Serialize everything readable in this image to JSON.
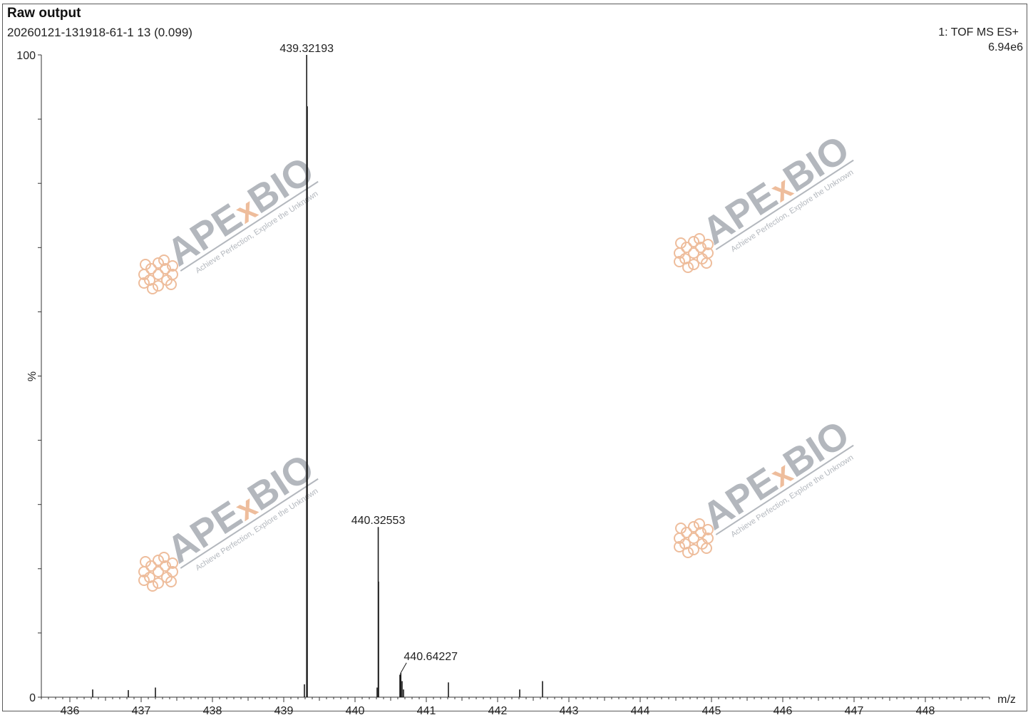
{
  "header": {
    "title": "Raw output",
    "sample": "20260121-131918-61-1 13 (0.099)",
    "mode": "1: TOF MS ES+",
    "intensity": "6.94e6"
  },
  "watermark": {
    "brand_left": "APE",
    "brand_x": "x",
    "brand_right": "BIO",
    "tagline": "Achieve Perfection, Explore the Unknown"
  },
  "colors": {
    "peak": "#1a1a1a",
    "axis": "#333333",
    "watermark_gray": "#9aa0a8",
    "watermark_orange": "#e9a77c"
  },
  "chart_data": {
    "type": "bar",
    "title": "Raw output",
    "xlabel": "m/z",
    "ylabel": "%",
    "xlim": [
      435.6,
      448.9
    ],
    "ylim": [
      0,
      100
    ],
    "x_ticks": [
      "436",
      "437",
      "438",
      "439",
      "440",
      "441",
      "442",
      "443",
      "444",
      "445",
      "446",
      "447",
      "448"
    ],
    "y_ticks": [
      "0",
      "100"
    ],
    "peaks": [
      {
        "mz": 436.32,
        "intensity": 1.2,
        "label": ""
      },
      {
        "mz": 436.82,
        "intensity": 1.1,
        "label": ""
      },
      {
        "mz": 437.2,
        "intensity": 1.5,
        "label": ""
      },
      {
        "mz": 439.29,
        "intensity": 2.0,
        "label": ""
      },
      {
        "mz": 439.32193,
        "intensity": 100,
        "label": "439.32193"
      },
      {
        "mz": 439.33,
        "intensity": 92,
        "label": ""
      },
      {
        "mz": 440.31,
        "intensity": 1.5,
        "label": ""
      },
      {
        "mz": 440.32553,
        "intensity": 26.5,
        "label": "440.32553"
      },
      {
        "mz": 440.33,
        "intensity": 18,
        "label": ""
      },
      {
        "mz": 440.63,
        "intensity": 3.5,
        "label": ""
      },
      {
        "mz": 440.64227,
        "intensity": 3.8,
        "label": "440.64227"
      },
      {
        "mz": 440.66,
        "intensity": 2.5,
        "label": ""
      },
      {
        "mz": 440.68,
        "intensity": 1.2,
        "label": ""
      },
      {
        "mz": 441.31,
        "intensity": 2.3,
        "label": ""
      },
      {
        "mz": 442.31,
        "intensity": 1.2,
        "label": ""
      },
      {
        "mz": 442.63,
        "intensity": 2.5,
        "label": ""
      }
    ]
  }
}
